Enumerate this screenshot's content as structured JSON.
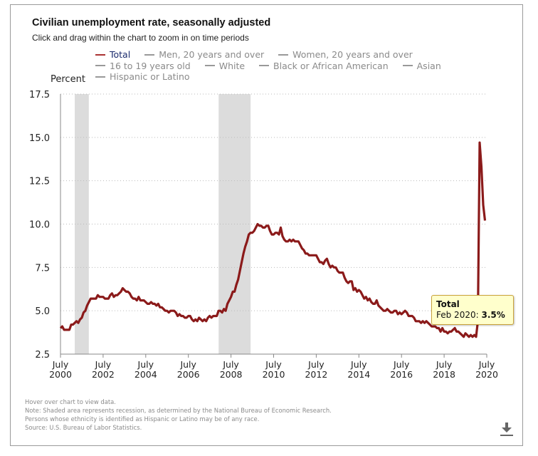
{
  "header": {
    "title": "Civilian unemployment rate, seasonally adjusted",
    "subtitle": "Click and drag within the chart to zoom in on time periods"
  },
  "legend": {
    "items": [
      {
        "label": "Total",
        "active": true
      },
      {
        "label": "Men, 20 years and over",
        "active": false
      },
      {
        "label": "Women, 20 years and over",
        "active": false
      },
      {
        "label": "16 to 19 years old",
        "active": false
      },
      {
        "label": "White",
        "active": false
      },
      {
        "label": "Black or African American",
        "active": false
      },
      {
        "label": "Asian",
        "active": false
      },
      {
        "label": "Hispanic or Latino",
        "active": false
      }
    ]
  },
  "tooltip": {
    "series": "Total",
    "date": "Feb 2020:",
    "value": "3.5%"
  },
  "notes": [
    "Hover over chart to view data.",
    "Note: Shaded area represents recession, as determined by the National Bureau of Economic Research.",
    "Persons whose ethnicity is identified as Hispanic or Latino may be of any race.",
    "Source: U.S. Bureau of Labor Statistics."
  ],
  "icons": {
    "download": "download-icon"
  },
  "colors": {
    "series_total": "#8b1a1a",
    "recession": "#dcdcdc",
    "tooltip_bg": "#ffffcc"
  },
  "chart_data": {
    "type": "line",
    "title": "Civilian unemployment rate, seasonally adjusted",
    "xlabel": "",
    "ylabel": "Percent",
    "ylim": [
      2.5,
      17.5
    ],
    "yticks": [
      "2.5",
      "5.0",
      "7.5",
      "10.0",
      "12.5",
      "15.0",
      "17.5"
    ],
    "ytick_values": [
      2.5,
      5.0,
      7.5,
      10.0,
      12.5,
      15.0,
      17.5
    ],
    "xticks": [
      {
        "label": [
          "July",
          "2000"
        ],
        "year": 2000.5
      },
      {
        "label": [
          "July",
          "2002"
        ],
        "year": 2002.5
      },
      {
        "label": [
          "July",
          "2004"
        ],
        "year": 2004.5
      },
      {
        "label": [
          "July",
          "2006"
        ],
        "year": 2006.5
      },
      {
        "label": [
          "July",
          "2008"
        ],
        "year": 2008.5
      },
      {
        "label": [
          "July",
          "2010"
        ],
        "year": 2010.5
      },
      {
        "label": [
          "July",
          "2012"
        ],
        "year": 2012.5
      },
      {
        "label": [
          "July",
          "2014"
        ],
        "year": 2014.5
      },
      {
        "label": [
          "July",
          "2016"
        ],
        "year": 2016.5
      },
      {
        "label": [
          "July",
          "2018"
        ],
        "year": 2018.5
      },
      {
        "label": [
          "July",
          "2020"
        ],
        "year": 2020.5
      }
    ],
    "xlim": [
      2000.5,
      2020.5
    ],
    "grid": "horizontal-dotted",
    "recessions": [
      {
        "start": 2001.17,
        "end": 2001.83
      },
      {
        "start": 2007.92,
        "end": 2009.42
      }
    ],
    "highlight": {
      "series": "Total",
      "date": "Feb 2020",
      "value": 3.5
    },
    "series": [
      {
        "name": "Total",
        "start": "2000-07",
        "values": [
          4.0,
          4.1,
          3.9,
          3.9,
          3.9,
          3.9,
          4.2,
          4.2,
          4.3,
          4.4,
          4.3,
          4.5,
          4.6,
          4.9,
          5.0,
          5.3,
          5.5,
          5.7,
          5.7,
          5.7,
          5.7,
          5.9,
          5.8,
          5.8,
          5.8,
          5.7,
          5.7,
          5.7,
          5.9,
          6.0,
          5.8,
          5.9,
          5.9,
          6.0,
          6.1,
          6.3,
          6.2,
          6.1,
          6.1,
          6.0,
          5.8,
          5.7,
          5.7,
          5.6,
          5.8,
          5.6,
          5.6,
          5.6,
          5.5,
          5.4,
          5.4,
          5.5,
          5.4,
          5.4,
          5.3,
          5.4,
          5.2,
          5.2,
          5.1,
          5.0,
          5.0,
          4.9,
          5.0,
          5.0,
          5.0,
          4.9,
          4.7,
          4.8,
          4.7,
          4.7,
          4.6,
          4.6,
          4.7,
          4.7,
          4.5,
          4.4,
          4.5,
          4.4,
          4.6,
          4.5,
          4.4,
          4.5,
          4.4,
          4.6,
          4.7,
          4.6,
          4.7,
          4.7,
          4.7,
          5.0,
          5.0,
          4.9,
          5.1,
          5.0,
          5.4,
          5.6,
          5.8,
          6.1,
          6.1,
          6.5,
          6.8,
          7.3,
          7.8,
          8.3,
          8.7,
          9.0,
          9.4,
          9.5,
          9.5,
          9.6,
          9.8,
          10.0,
          9.9,
          9.9,
          9.8,
          9.8,
          9.9,
          9.9,
          9.6,
          9.4,
          9.4,
          9.5,
          9.5,
          9.4,
          9.8,
          9.3,
          9.1,
          9.0,
          9.0,
          9.1,
          9.0,
          9.1,
          9.0,
          9.0,
          9.0,
          8.8,
          8.6,
          8.5,
          8.3,
          8.3,
          8.2,
          8.2,
          8.2,
          8.2,
          8.2,
          8.0,
          7.8,
          7.8,
          7.7,
          7.9,
          8.0,
          7.7,
          7.5,
          7.6,
          7.5,
          7.5,
          7.3,
          7.2,
          7.2,
          7.2,
          6.9,
          6.7,
          6.6,
          6.7,
          6.7,
          6.2,
          6.3,
          6.1,
          6.2,
          6.1,
          5.9,
          5.7,
          5.8,
          5.6,
          5.7,
          5.5,
          5.4,
          5.4,
          5.6,
          5.3,
          5.2,
          5.1,
          5.0,
          5.0,
          5.1,
          5.0,
          4.9,
          4.9,
          5.0,
          5.0,
          4.8,
          4.9,
          4.8,
          4.9,
          5.0,
          4.9,
          4.7,
          4.7,
          4.7,
          4.6,
          4.4,
          4.4,
          4.4,
          4.3,
          4.4,
          4.3,
          4.4,
          4.3,
          4.2,
          4.1,
          4.1,
          4.1,
          4.0,
          4.0,
          3.8,
          4.0,
          3.8,
          3.8,
          3.7,
          3.8,
          3.8,
          3.9,
          4.0,
          3.8,
          3.8,
          3.7,
          3.6,
          3.5,
          3.7,
          3.6,
          3.5,
          3.6,
          3.5,
          3.6,
          3.5,
          4.4,
          14.7,
          13.3,
          11.1,
          10.2
        ]
      }
    ]
  }
}
